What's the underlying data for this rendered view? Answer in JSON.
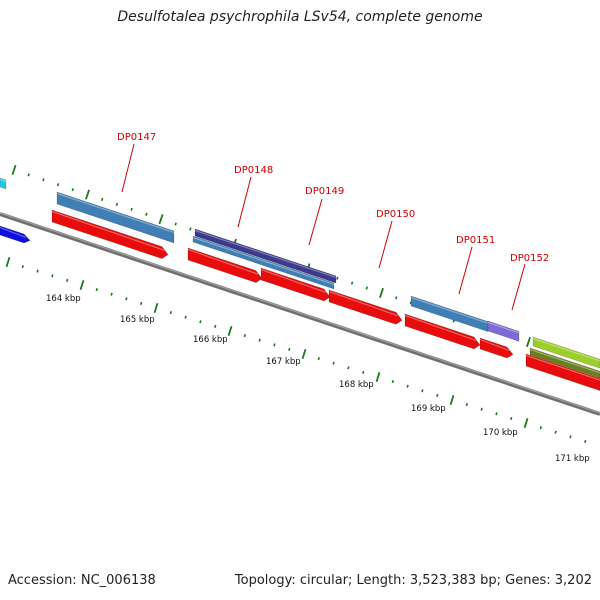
{
  "title": "Desulfotalea psychrophila LSv54, complete genome",
  "accession": {
    "label": "Accession:",
    "value": "NC_006138"
  },
  "genome_info": "Topology: circular; Length: 3,523,383 bp; Genes: 3,202",
  "colors": {
    "cds_red": "#e80c0c",
    "steelblue": "#3f7fb5",
    "darkslate": "#3c3a8c",
    "mediumpurple": "#7d6bd6",
    "blue": "#1010e0",
    "cyan": "#22c8e8",
    "yellowgreen": "#9ccf2a",
    "olive": "#6a7f1e",
    "backbone": "#6e6e6e",
    "tick": "#1a7a1a",
    "label": "#d00000"
  },
  "kbp_labels": [
    "164 kbp",
    "165 kbp",
    "166 kbp",
    "167 kbp",
    "168 kbp",
    "169 kbp",
    "170 kbp",
    "171 kbp"
  ],
  "gene_labels": [
    "DP0147",
    "DP0148",
    "DP0149",
    "DP0150",
    "DP0151",
    "DP0152"
  ]
}
